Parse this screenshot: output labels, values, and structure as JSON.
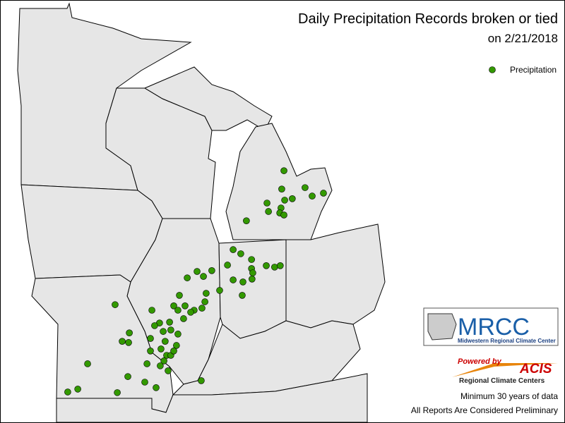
{
  "header": {
    "title": "Daily Precipitation Records broken or tied",
    "subtitle": "on 2/21/2018"
  },
  "legend": {
    "label": "Precipitation",
    "color": "#339900"
  },
  "points": [
    [
      -84.47,
      44.19
    ],
    [
      -84.56,
      43.56
    ],
    [
      -83.61,
      43.61
    ],
    [
      -82.86,
      43.42
    ],
    [
      -83.32,
      43.32
    ],
    [
      -84.13,
      43.23
    ],
    [
      -84.44,
      43.18
    ],
    [
      -85.16,
      43.08
    ],
    [
      -85.1,
      42.79
    ],
    [
      -84.59,
      42.91
    ],
    [
      -84.64,
      42.74
    ],
    [
      -84.47,
      42.67
    ],
    [
      -86.0,
      42.47
    ],
    [
      -86.54,
      41.48
    ],
    [
      -86.23,
      41.34
    ],
    [
      -85.79,
      41.14
    ],
    [
      -86.77,
      40.95
    ],
    [
      -85.19,
      40.93
    ],
    [
      -84.85,
      40.88
    ],
    [
      -84.62,
      40.93
    ],
    [
      -85.79,
      40.83
    ],
    [
      -85.74,
      40.68
    ],
    [
      -88.01,
      40.73
    ],
    [
      -87.41,
      40.76
    ],
    [
      -87.75,
      40.56
    ],
    [
      -88.41,
      40.51
    ],
    [
      -86.54,
      40.44
    ],
    [
      -85.77,
      40.47
    ],
    [
      -86.14,
      40.37
    ],
    [
      -87.09,
      40.08
    ],
    [
      -87.64,
      39.98
    ],
    [
      -88.73,
      39.91
    ],
    [
      -86.17,
      39.91
    ],
    [
      -91.35,
      39.59
    ],
    [
      -88.96,
      39.55
    ],
    [
      -88.5,
      39.55
    ],
    [
      -88.13,
      39.4
    ],
    [
      -87.69,
      39.69
    ],
    [
      -87.81,
      39.47
    ],
    [
      -88.27,
      39.33
    ],
    [
      -88.79,
      39.4
    ],
    [
      -89.85,
      39.4
    ],
    [
      -88.56,
      39.11
    ],
    [
      -89.13,
      38.99
    ],
    [
      -89.54,
      38.96
    ],
    [
      -89.08,
      38.72
    ],
    [
      -89.39,
      38.67
    ],
    [
      -89.74,
      38.87
    ],
    [
      -90.77,
      38.62
    ],
    [
      -90.8,
      38.29
    ],
    [
      -91.06,
      38.33
    ],
    [
      -89.91,
      38.43
    ],
    [
      -88.79,
      38.58
    ],
    [
      -89.31,
      38.33
    ],
    [
      -88.85,
      38.19
    ],
    [
      -89.48,
      38.07
    ],
    [
      -89.91,
      38.0
    ],
    [
      -89.25,
      37.85
    ],
    [
      -89.08,
      37.85
    ],
    [
      -89.36,
      37.66
    ],
    [
      -88.96,
      38.0
    ],
    [
      -92.47,
      37.56
    ],
    [
      -90.05,
      37.56
    ],
    [
      -89.51,
      37.49
    ],
    [
      -89.19,
      37.32
    ],
    [
      -90.83,
      37.12
    ],
    [
      -90.14,
      36.93
    ],
    [
      -89.68,
      36.74
    ],
    [
      -87.84,
      36.98
    ],
    [
      -92.87,
      36.69
    ],
    [
      -93.28,
      36.59
    ],
    [
      -91.26,
      36.57
    ]
  ],
  "logo": {
    "name": "MRCC",
    "subtitle": "Midwestern Regional Climate Center"
  },
  "powered": {
    "by": "Powered by",
    "name": "ACIS",
    "subtitle": "Regional Climate Centers"
  },
  "footer": {
    "notes": [
      "Minimum 30 years of data",
      "All Reports Are Considered Preliminary"
    ]
  }
}
